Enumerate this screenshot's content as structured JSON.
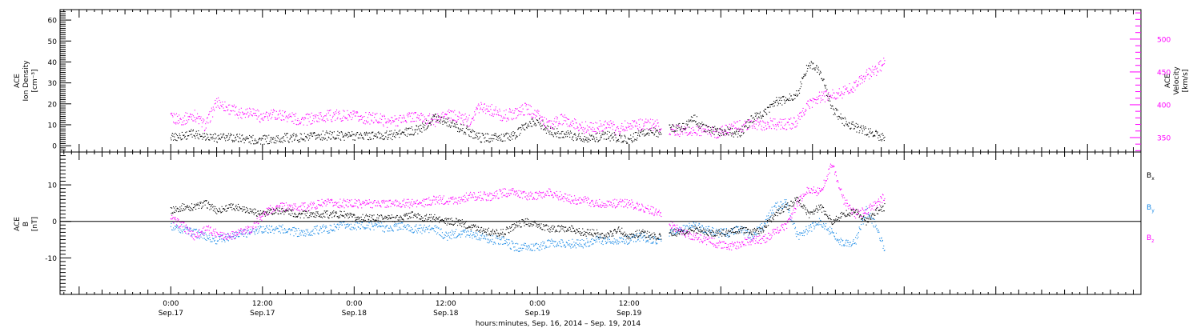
{
  "chart_data": [
    {
      "type": "scatter",
      "panel": "top",
      "left_axis": {
        "title_lines": [
          "ACE",
          "Ion Density",
          "[cm⁻³]"
        ],
        "ylim": [
          -3,
          65
        ],
        "ticks": [
          "0",
          "10",
          "20",
          "30",
          "40",
          "50",
          "60"
        ],
        "tick_values": [
          0,
          10,
          20,
          30,
          40,
          50,
          60
        ]
      },
      "right_axis": {
        "title_lines": [
          "ACE",
          "Velocity",
          "[km/s]"
        ],
        "ylim": [
          328,
          545
        ],
        "ticks": [
          "350",
          "400",
          "450",
          "500"
        ],
        "tick_values": [
          350,
          400,
          450,
          500
        ]
      },
      "series": [
        {
          "color": "#000000",
          "axis": "left",
          "gap_hours": [
            [
              64.2,
              65.2
            ],
            [
              93.5,
              96.0
            ]
          ],
          "x_hours": [
            -0.05,
            1.5,
            3,
            4.5,
            6,
            7.5,
            9,
            10.5,
            12,
            13.5,
            15,
            16.5,
            18,
            19.5,
            21,
            22.5,
            24,
            25.5,
            27,
            28.5,
            30,
            31.5,
            33,
            34.5,
            36,
            37.5,
            39,
            40.5,
            42,
            43.5,
            45,
            46.5,
            48,
            49.5,
            51,
            52.5,
            54,
            55.5,
            57,
            58.5,
            60,
            61.5,
            63,
            64,
            65.5,
            67,
            68.5,
            70,
            71.5,
            73,
            74.5,
            76,
            77.5,
            79,
            80.5,
            82,
            83.5,
            85,
            86.5,
            88,
            89.5,
            91,
            92.5,
            93.4
          ],
          "values": [
            4,
            5,
            6,
            5,
            4,
            4,
            4,
            3,
            3,
            3,
            4,
            4,
            4,
            5,
            5,
            5,
            5,
            5,
            5,
            5,
            6,
            7,
            9,
            14,
            12,
            9,
            7,
            4,
            4,
            4,
            5,
            10,
            12,
            7,
            6,
            5,
            4,
            4,
            5,
            4,
            3,
            6,
            7,
            6,
            9,
            9,
            13,
            8,
            7,
            7,
            6,
            13,
            15,
            21,
            22,
            25,
            40,
            35,
            18,
            12,
            9,
            7,
            5,
            4
          ]
        },
        {
          "color": "#ff00ff",
          "axis": "right",
          "gap_hours": [
            [
              64.2,
              65.2
            ],
            [
              93.5,
              96.0
            ]
          ],
          "x_hours": [
            -0.05,
            1.5,
            3,
            4.5,
            6,
            7.5,
            9,
            10.5,
            12,
            13.5,
            15,
            16.5,
            18,
            19.5,
            21,
            22.5,
            24,
            25.5,
            27,
            28.5,
            30,
            31.5,
            33,
            34.5,
            36,
            37.5,
            39,
            40.5,
            42,
            43.5,
            45,
            46.5,
            48,
            49.5,
            51,
            52.5,
            54,
            55.5,
            57,
            58.5,
            60,
            61.5,
            63,
            64,
            65.5,
            67,
            68.5,
            70,
            71.5,
            73,
            74.5,
            76,
            77.5,
            79,
            80.5,
            82,
            83.5,
            85,
            86.5,
            88,
            89.5,
            91,
            92.5,
            93.4
          ],
          "values": [
            380,
            378,
            385,
            368,
            405,
            395,
            388,
            392,
            380,
            386,
            384,
            378,
            378,
            382,
            384,
            384,
            382,
            380,
            380,
            374,
            378,
            383,
            380,
            376,
            385,
            382,
            376,
            400,
            392,
            383,
            388,
            395,
            384,
            368,
            378,
            372,
            366,
            365,
            372,
            362,
            372,
            370,
            370,
            368,
            362,
            360,
            360,
            362,
            358,
            364,
            368,
            370,
            370,
            372,
            370,
            375,
            402,
            412,
            415,
            420,
            430,
            445,
            455,
            465
          ]
        }
      ]
    },
    {
      "type": "scatter",
      "panel": "bottom",
      "left_axis": {
        "title_lines": [
          "ACE",
          "B",
          "[nT]"
        ],
        "ylim": [
          -20,
          19
        ],
        "ticks": [
          "-10",
          "0",
          "10"
        ],
        "tick_values": [
          -10,
          0,
          10
        ]
      },
      "zero_line": true,
      "series": [
        {
          "name": "Bx",
          "color": "#000000",
          "gap_hours": [
            [
              64.2,
              65.2
            ]
          ],
          "x_hours": [
            -0.05,
            1.5,
            3,
            4.5,
            6,
            7.5,
            9,
            10.5,
            12,
            13.5,
            15,
            16.5,
            18,
            19.5,
            21,
            22.5,
            24,
            25.5,
            27,
            28.5,
            30,
            31.5,
            33,
            34.5,
            36,
            37.5,
            39,
            40.5,
            42,
            43.5,
            45,
            46.5,
            48,
            49.5,
            51,
            52.5,
            54,
            55.5,
            57,
            58.5,
            60,
            61.5,
            63,
            64,
            65.5,
            67,
            68.5,
            70,
            71.5,
            73,
            74.5,
            76,
            77.5,
            79,
            80.5,
            82,
            83.5,
            85,
            86.5,
            88,
            89.5,
            91,
            92.5,
            93.4
          ],
          "values": [
            3,
            4,
            4,
            5,
            3,
            4,
            4,
            3,
            2,
            3,
            3,
            2,
            2,
            2,
            2,
            2,
            1,
            1,
            1,
            1,
            1,
            2,
            1,
            1,
            0,
            0,
            -1,
            -2,
            -3,
            -3,
            -1,
            0,
            -1,
            -2,
            -2,
            -2,
            -3,
            -3,
            -4,
            -2,
            -4,
            -3,
            -4,
            -4,
            -3,
            -3,
            -2,
            -3,
            -3,
            -3,
            -2,
            -3,
            -2,
            2,
            4,
            6,
            2,
            4,
            0,
            2,
            3,
            0,
            3,
            4
          ]
        },
        {
          "name": "By",
          "color": "#1a8ae6",
          "gap_hours": [
            [
              64.2,
              65.2
            ]
          ],
          "x_hours": [
            -0.05,
            1.5,
            3,
            4.5,
            6,
            7.5,
            9,
            10.5,
            12,
            13.5,
            15,
            16.5,
            18,
            19.5,
            21,
            22.5,
            24,
            25.5,
            27,
            28.5,
            30,
            31.5,
            33,
            34.5,
            36,
            37.5,
            39,
            40.5,
            42,
            43.5,
            45,
            46.5,
            48,
            49.5,
            51,
            52.5,
            54,
            55.5,
            57,
            58.5,
            60,
            61.5,
            63,
            64,
            65.5,
            67,
            68.5,
            70,
            71.5,
            73,
            74.5,
            76,
            77.5,
            79,
            80.5,
            82,
            83.5,
            85,
            86.5,
            88,
            89.5,
            91,
            92.5,
            93.4
          ],
          "values": [
            -1,
            -2,
            -3,
            -4,
            -5,
            -4,
            -3,
            -3,
            -2,
            -2,
            -2,
            -3,
            -3,
            -2,
            -2,
            -1,
            -1,
            -1,
            -1,
            -2,
            -1,
            -2,
            -2,
            -2,
            -4,
            -3,
            -3,
            -4,
            -5,
            -5,
            -7,
            -7,
            -7,
            -6,
            -6,
            -6,
            -6,
            -5,
            -5,
            -5,
            -5,
            -4,
            -5,
            -5,
            -3,
            -2,
            -1,
            -2,
            -3,
            -3,
            -2,
            -4,
            -1,
            4,
            5,
            -4,
            -2,
            0,
            -3,
            -6,
            -6,
            3,
            -2,
            -8
          ]
        },
        {
          "name": "Bz",
          "color": "#ff00ff",
          "gap_hours": [
            [
              64.2,
              65.2
            ]
          ],
          "x_hours": [
            -0.05,
            1.5,
            3,
            4.5,
            6,
            7.5,
            9,
            10.5,
            12,
            13.5,
            15,
            16.5,
            18,
            19.5,
            21,
            22.5,
            24,
            25.5,
            27,
            28.5,
            30,
            31.5,
            33,
            34.5,
            36,
            37.5,
            39,
            40.5,
            42,
            43.5,
            45,
            46.5,
            48,
            49.5,
            51,
            52.5,
            54,
            55.5,
            57,
            58.5,
            60,
            61.5,
            63,
            64,
            65.5,
            67,
            68.5,
            70,
            71.5,
            73,
            74.5,
            76,
            77.5,
            79,
            80.5,
            82,
            83.5,
            85,
            86.5,
            88,
            89.5,
            91,
            92.5,
            93.4
          ],
          "values": [
            1,
            -1,
            -4,
            -2,
            -3,
            -4,
            -3,
            -2,
            2,
            4,
            4,
            4,
            4,
            5,
            5,
            5,
            5,
            5,
            5,
            5,
            5,
            5,
            5,
            6,
            6,
            6,
            7,
            7,
            7,
            8,
            8,
            7,
            7,
            8,
            7,
            6,
            6,
            5,
            5,
            5,
            5,
            4,
            3,
            2,
            -1,
            -3,
            -4,
            -5,
            -6,
            -7,
            -6,
            -5,
            -5,
            -3,
            -1,
            5,
            9,
            8,
            16,
            6,
            2,
            3,
            5,
            7
          ]
        }
      ],
      "legend": {
        "placement": "right",
        "entries": [
          {
            "base": "B",
            "sub": "x",
            "color": "#000000"
          },
          {
            "base": "B",
            "sub": "y",
            "color": "#1a8ae6"
          },
          {
            "base": "B",
            "sub": "z",
            "color": "#ff00ff"
          }
        ]
      }
    }
  ],
  "x_axis": {
    "range_hours": [
      -14.5,
      127
    ],
    "time_labels": [
      {
        "hour": 0,
        "time": "0:00",
        "date": "Sep.17"
      },
      {
        "hour": 12,
        "time": "12:00",
        "date": "Sep.17"
      },
      {
        "hour": 24,
        "time": "0:00",
        "date": "Sep.18"
      },
      {
        "hour": 36,
        "time": "12:00",
        "date": "Sep.18"
      },
      {
        "hour": 48,
        "time": "0:00",
        "date": "Sep.19"
      },
      {
        "hour": 60,
        "time": "12:00",
        "date": "Sep.19"
      }
    ],
    "title": "hours:minutes, Sep. 16, 2014 – Sep. 19, 2014"
  }
}
